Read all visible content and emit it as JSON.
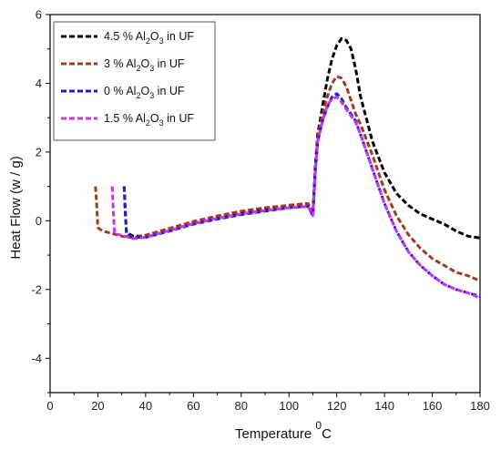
{
  "chart_data": {
    "type": "line",
    "title": "",
    "xlabel": {
      "main": "Temperature ",
      "sup": "0",
      "after": "C"
    },
    "ylabel": "Heat Flow (w / g)",
    "xlim": [
      0,
      180
    ],
    "ylim": [
      -5,
      6
    ],
    "xticks": [
      0,
      20,
      40,
      60,
      80,
      100,
      120,
      140,
      160,
      180
    ],
    "yticks": [
      -4,
      -2,
      0,
      2,
      4,
      6
    ],
    "grid": false,
    "legend_position": "top-left",
    "series": [
      {
        "name": "4.5 % Al2O3 in UF",
        "legend": {
          "pre": "4.5 % Al",
          "sub1": "2",
          "mid": "O",
          "sub2": "3",
          "post": " in UF"
        },
        "color": "#000000",
        "x": [
          31,
          31.5,
          32,
          35,
          40,
          50,
          60,
          70,
          80,
          90,
          100,
          108,
          110,
          111,
          112,
          114,
          116,
          118,
          120,
          122,
          124,
          126,
          128,
          130,
          135,
          140,
          145,
          150,
          155,
          160,
          165,
          170,
          175,
          180
        ],
        "y": [
          1.0,
          0.2,
          -0.35,
          -0.45,
          -0.45,
          -0.25,
          -0.05,
          0.1,
          0.25,
          0.35,
          0.45,
          0.5,
          0.2,
          1.6,
          2.5,
          3.3,
          4.1,
          4.7,
          5.1,
          5.3,
          5.25,
          5.0,
          4.4,
          3.6,
          2.3,
          1.4,
          0.8,
          0.45,
          0.2,
          0.05,
          -0.1,
          -0.3,
          -0.45,
          -0.5
        ]
      },
      {
        "name": "3 % Al2O3 in UF",
        "legend": {
          "pre": "3 % Al",
          "sub1": "2",
          "mid": "O",
          "sub2": "3",
          "post": " in UF"
        },
        "color": "#a33a1f",
        "x": [
          19,
          19.5,
          20,
          22,
          25,
          30,
          35,
          40,
          50,
          60,
          70,
          80,
          90,
          100,
          108,
          110,
          111,
          112,
          114,
          116,
          118,
          120,
          122,
          124,
          126,
          128,
          130,
          135,
          140,
          145,
          150,
          155,
          160,
          165,
          170,
          175,
          180
        ],
        "y": [
          1.0,
          0.5,
          -0.2,
          -0.3,
          -0.35,
          -0.45,
          -0.5,
          -0.42,
          -0.22,
          -0.02,
          0.14,
          0.28,
          0.38,
          0.45,
          0.5,
          0.2,
          1.5,
          2.4,
          3.1,
          3.6,
          4.0,
          4.2,
          4.15,
          3.9,
          3.5,
          3.1,
          2.8,
          1.9,
          0.9,
          0.15,
          -0.4,
          -0.8,
          -1.1,
          -1.3,
          -1.5,
          -1.6,
          -1.75
        ]
      },
      {
        "name": "0 % Al2O3 in UF",
        "legend": {
          "pre": "0 % Al",
          "sub1": "2",
          "mid": "O",
          "sub2": "3",
          "post": " in UF"
        },
        "color": "#1f1fd4",
        "x": [
          31,
          31.5,
          32,
          35,
          40,
          50,
          60,
          70,
          80,
          90,
          100,
          108,
          110,
          111,
          112,
          114,
          116,
          118,
          120,
          122,
          124,
          126,
          128,
          130,
          135,
          140,
          145,
          150,
          155,
          160,
          165,
          170,
          175,
          180
        ],
        "y": [
          1.0,
          0.3,
          -0.4,
          -0.48,
          -0.48,
          -0.3,
          -0.1,
          0.05,
          0.18,
          0.28,
          0.38,
          0.42,
          0.15,
          1.4,
          2.3,
          2.9,
          3.3,
          3.6,
          3.7,
          3.55,
          3.3,
          3.1,
          2.9,
          2.5,
          1.5,
          0.5,
          -0.3,
          -0.9,
          -1.3,
          -1.6,
          -1.85,
          -2.0,
          -2.1,
          -2.2
        ]
      },
      {
        "name": "1.5 % Al2O3 in UF",
        "legend": {
          "pre": "1.5 % Al",
          "sub1": "2",
          "mid": "O",
          "sub2": "3",
          "post": " in UF"
        },
        "color": "#c637e8",
        "x": [
          26,
          26.5,
          27,
          30,
          35,
          40,
          50,
          60,
          70,
          80,
          90,
          100,
          108,
          110,
          111,
          112,
          114,
          116,
          118,
          120,
          122,
          124,
          126,
          128,
          130,
          135,
          140,
          145,
          150,
          155,
          160,
          165,
          170,
          175,
          180
        ],
        "y": [
          1.0,
          0.2,
          -0.38,
          -0.42,
          -0.52,
          -0.48,
          -0.28,
          -0.08,
          0.07,
          0.2,
          0.3,
          0.38,
          0.42,
          0.15,
          1.4,
          2.3,
          2.9,
          3.35,
          3.55,
          3.6,
          3.45,
          3.25,
          3.05,
          2.85,
          2.5,
          1.5,
          0.5,
          -0.3,
          -0.9,
          -1.3,
          -1.6,
          -1.85,
          -2.0,
          -2.1,
          -2.25
        ]
      }
    ]
  }
}
